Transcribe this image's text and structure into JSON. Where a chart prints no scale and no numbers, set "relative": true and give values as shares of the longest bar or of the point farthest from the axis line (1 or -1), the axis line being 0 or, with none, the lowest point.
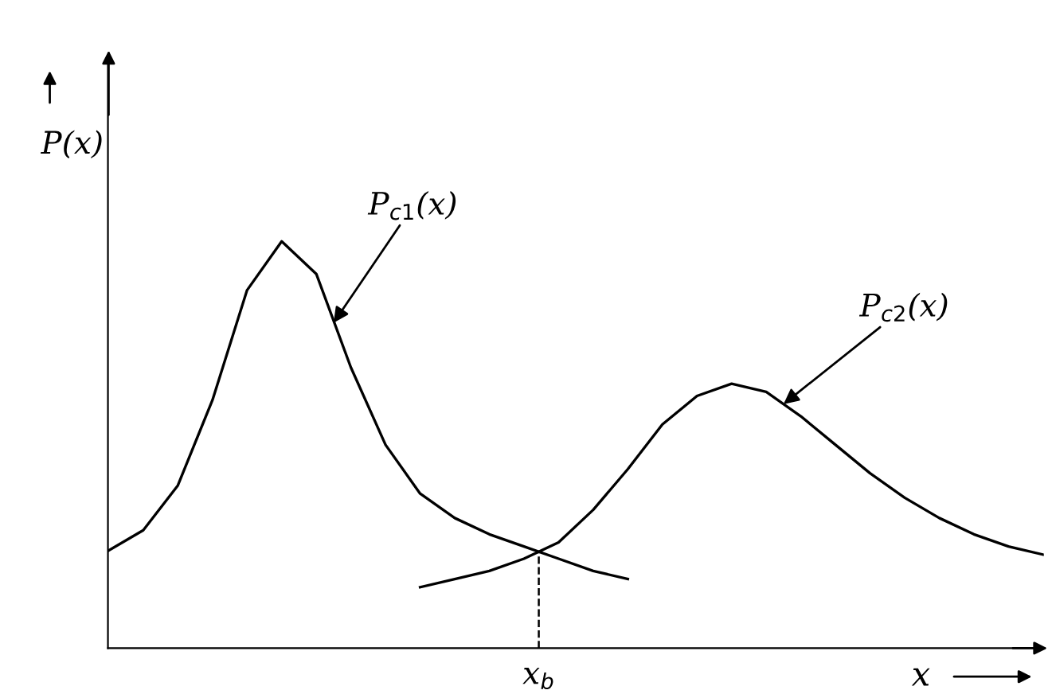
{
  "chart_data": {
    "type": "line",
    "relative": true,
    "xlabel": "x",
    "ylabel": "P(x)",
    "categories": [
      null,
      null,
      null,
      null,
      null,
      null,
      null,
      null,
      null,
      null,
      null,
      null,
      null,
      null,
      null,
      null,
      null,
      null,
      null,
      null,
      null,
      null,
      null,
      null,
      null,
      null,
      null,
      null
    ],
    "series": [
      {
        "color": "#000000",
        "values": [
          0.24,
          0.29,
          0.4,
          0.61,
          0.88,
          1,
          0.92,
          0.69,
          0.5,
          0.38,
          0.32,
          0.28,
          0.25,
          0.22,
          0.19,
          0.17,
          null,
          null,
          null,
          null,
          null,
          null,
          null,
          null,
          null,
          null,
          null,
          null
        ]
      },
      {
        "color": "#000000",
        "values": [
          null,
          null,
          null,
          null,
          null,
          null,
          null,
          null,
          null,
          0.15,
          0.17,
          0.19,
          0.22,
          0.26,
          0.34,
          0.44,
          0.55,
          0.62,
          0.65,
          0.63,
          0.57,
          0.5,
          0.43,
          0.37,
          0.32,
          0.28,
          0.25,
          0.23
        ]
      }
    ],
    "annotations": [
      "P$_{c1}$(x)",
      "P$_{c2}$(x)",
      "x$_{b}$"
    ],
    "marker": "none",
    "line_style": "solid"
  }
}
